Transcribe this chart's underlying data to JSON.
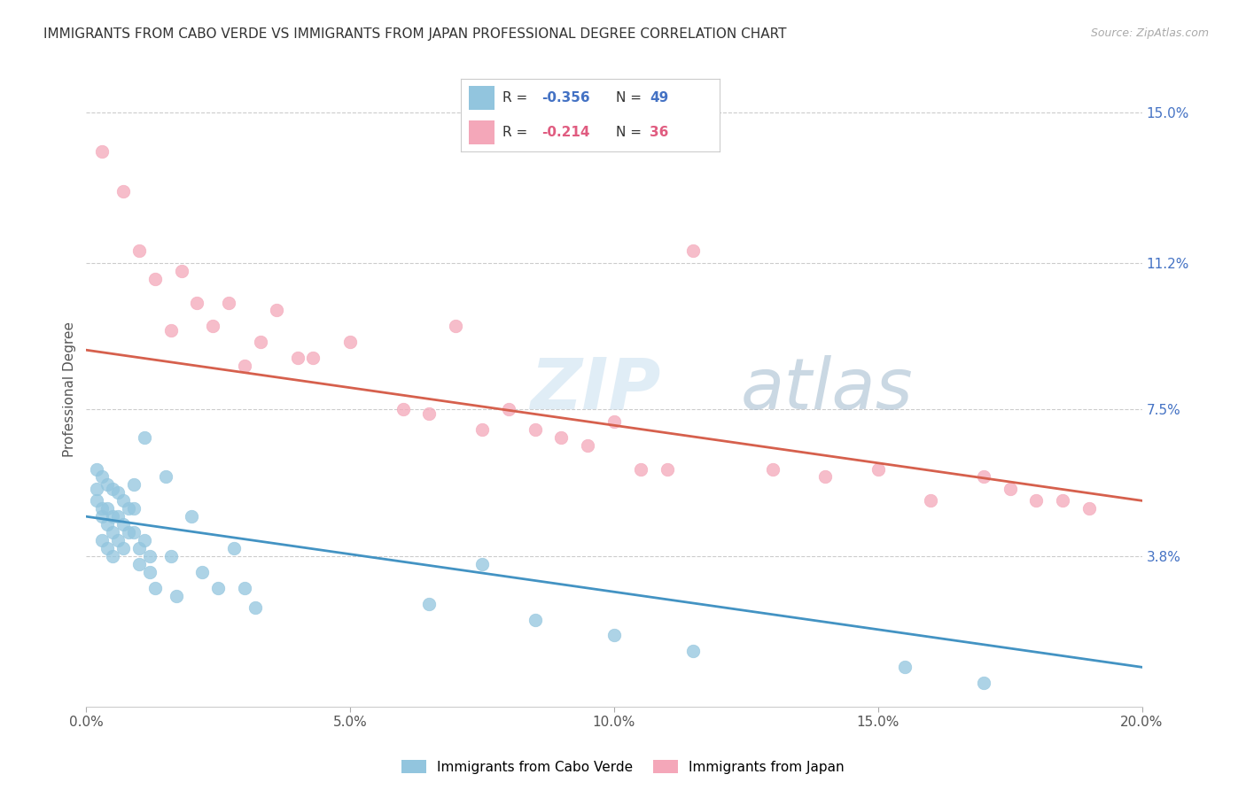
{
  "title": "IMMIGRANTS FROM CABO VERDE VS IMMIGRANTS FROM JAPAN PROFESSIONAL DEGREE CORRELATION CHART",
  "source": "Source: ZipAtlas.com",
  "ylabel": "Professional Degree",
  "xlim": [
    0.0,
    0.2
  ],
  "ylim": [
    0.0,
    0.16
  ],
  "yticks_right": [
    0.038,
    0.075,
    0.112,
    0.15
  ],
  "ytick_labels_right": [
    "3.8%",
    "7.5%",
    "11.2%",
    "15.0%"
  ],
  "xticks": [
    0.0,
    0.05,
    0.1,
    0.15,
    0.2
  ],
  "xtick_labels": [
    "0.0%",
    "5.0%",
    "10.0%",
    "15.0%",
    "20.0%"
  ],
  "series1_label": "Immigrants from Cabo Verde",
  "series2_label": "Immigrants from Japan",
  "series1_color": "#92c5de",
  "series2_color": "#f4a7b9",
  "series1_R": "-0.356",
  "series1_N": "49",
  "series2_R": "-0.214",
  "series2_N": "36",
  "trendline1_color": "#4393c3",
  "trendline2_color": "#d6604d",
  "watermark_zip": "ZIP",
  "watermark_atlas": "atlas",
  "cabo_verde_x": [
    0.002,
    0.002,
    0.002,
    0.003,
    0.003,
    0.003,
    0.003,
    0.004,
    0.004,
    0.004,
    0.004,
    0.005,
    0.005,
    0.005,
    0.005,
    0.006,
    0.006,
    0.006,
    0.007,
    0.007,
    0.007,
    0.008,
    0.008,
    0.009,
    0.009,
    0.009,
    0.01,
    0.01,
    0.011,
    0.011,
    0.012,
    0.012,
    0.013,
    0.015,
    0.016,
    0.017,
    0.02,
    0.022,
    0.025,
    0.028,
    0.03,
    0.032,
    0.065,
    0.075,
    0.085,
    0.1,
    0.115,
    0.155,
    0.17
  ],
  "cabo_verde_y": [
    0.06,
    0.055,
    0.052,
    0.058,
    0.05,
    0.048,
    0.042,
    0.056,
    0.05,
    0.046,
    0.04,
    0.055,
    0.048,
    0.044,
    0.038,
    0.054,
    0.048,
    0.042,
    0.052,
    0.046,
    0.04,
    0.05,
    0.044,
    0.056,
    0.05,
    0.044,
    0.04,
    0.036,
    0.068,
    0.042,
    0.038,
    0.034,
    0.03,
    0.058,
    0.038,
    0.028,
    0.048,
    0.034,
    0.03,
    0.04,
    0.03,
    0.025,
    0.026,
    0.036,
    0.022,
    0.018,
    0.014,
    0.01,
    0.006
  ],
  "japan_x": [
    0.003,
    0.007,
    0.01,
    0.013,
    0.016,
    0.018,
    0.021,
    0.024,
    0.027,
    0.03,
    0.033,
    0.036,
    0.04,
    0.043,
    0.05,
    0.06,
    0.065,
    0.07,
    0.075,
    0.08,
    0.085,
    0.09,
    0.095,
    0.1,
    0.105,
    0.11,
    0.115,
    0.13,
    0.14,
    0.15,
    0.16,
    0.17,
    0.175,
    0.18,
    0.185,
    0.19
  ],
  "japan_y": [
    0.14,
    0.13,
    0.115,
    0.108,
    0.095,
    0.11,
    0.102,
    0.096,
    0.102,
    0.086,
    0.092,
    0.1,
    0.088,
    0.088,
    0.092,
    0.075,
    0.074,
    0.096,
    0.07,
    0.075,
    0.07,
    0.068,
    0.066,
    0.072,
    0.06,
    0.06,
    0.115,
    0.06,
    0.058,
    0.06,
    0.052,
    0.058,
    0.055,
    0.052,
    0.052,
    0.05
  ],
  "trendline1_x": [
    0.0,
    0.2
  ],
  "trendline1_y": [
    0.048,
    0.01
  ],
  "trendline2_x": [
    0.0,
    0.2
  ],
  "trendline2_y": [
    0.09,
    0.052
  ]
}
